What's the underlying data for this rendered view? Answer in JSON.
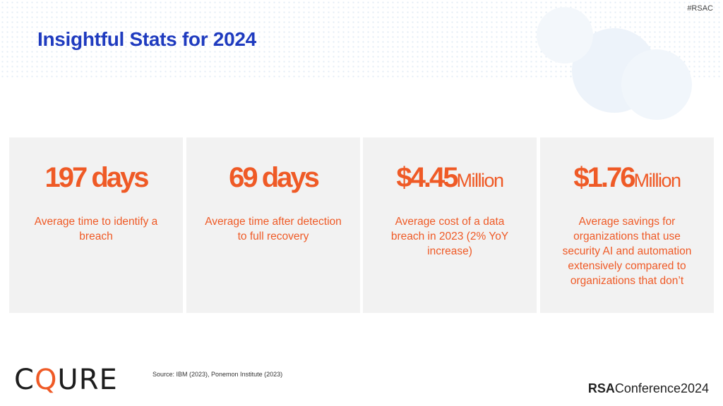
{
  "hashtag": "#RSAC",
  "title": "Insightful Stats for 2024",
  "stats": [
    {
      "value": "197 days",
      "unit": "",
      "description": "Average time to identify a breach"
    },
    {
      "value": "69 days",
      "unit": "",
      "description": "Average time after detection to full recovery"
    },
    {
      "value": "$4.45",
      "unit": "Million",
      "description": "Average cost of a data breach in 2023 (2% YoY increase)"
    },
    {
      "value": "$1.76",
      "unit": "Million",
      "description": "Average savings for organizations that use security AI and automation extensively compared to organizations that don’t"
    }
  ],
  "footer": {
    "logo_pre": "C",
    "logo_q": "Q",
    "logo_post": "URE",
    "source": "Source: IBM (2023), Ponemon Institute (2023)",
    "brand_bold": "RSA",
    "brand_rest": "Conference",
    "brand_year": "2024"
  },
  "colors": {
    "title": "#1f3bbf",
    "accent": "#ef5a26",
    "card_bg": "#f2f2f2"
  }
}
